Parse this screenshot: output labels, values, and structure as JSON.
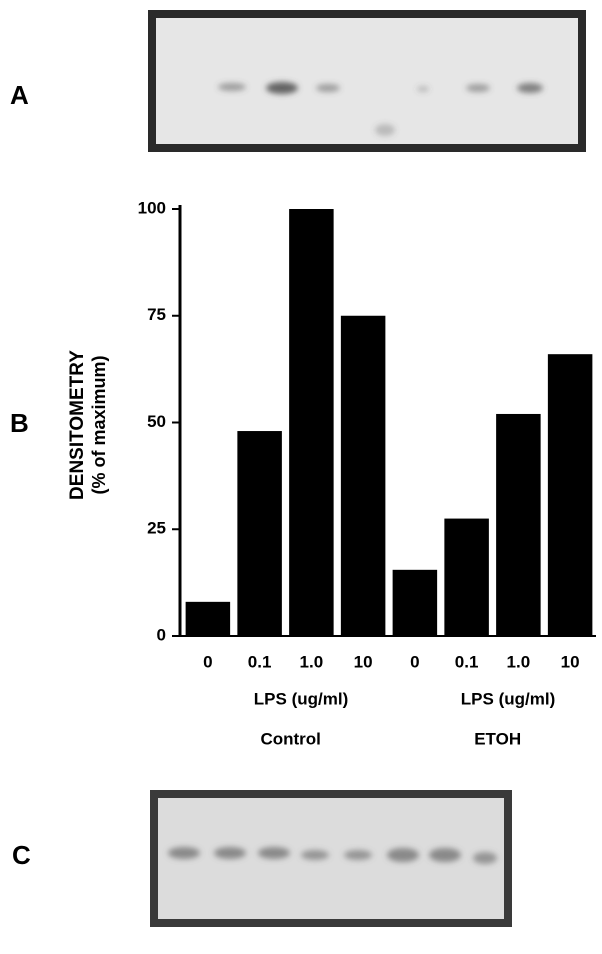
{
  "panels": {
    "a": "A",
    "b": "B",
    "c": "C"
  },
  "chart_data": {
    "type": "bar",
    "y_label": "DENSITOMETRY",
    "y_label_sub": "(% of maximum)",
    "categories": [
      "0",
      "0.1",
      "1.0",
      "10",
      "0",
      "0.1",
      "1.0",
      "10"
    ],
    "values": [
      8,
      48,
      100,
      75,
      15.5,
      27.5,
      52,
      66
    ],
    "color": "#000000",
    "ylim": [
      0,
      100
    ],
    "yticks": [
      0,
      25,
      50,
      75,
      100
    ],
    "groups": [
      {
        "unit": "LPS (ug/ml)",
        "name": "Control"
      },
      {
        "unit": "LPS (ug/ml)",
        "name": "ETOH"
      }
    ]
  }
}
